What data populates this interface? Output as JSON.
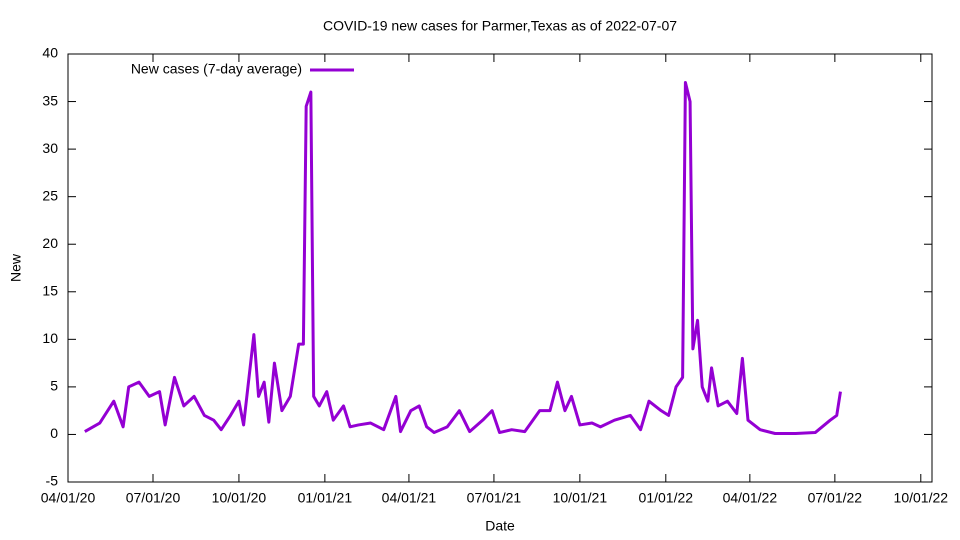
{
  "chart_data": {
    "type": "line",
    "title": "COVID-19 new cases for Parmer,Texas as of 2022-07-07",
    "x_label": "Date",
    "y_label": "New",
    "x": [
      "2020-04-19",
      "2020-05-05",
      "2020-05-20",
      "2020-05-30",
      "2020-06-05",
      "2020-06-16",
      "2020-06-27",
      "2020-07-08",
      "2020-07-14",
      "2020-07-24",
      "2020-08-03",
      "2020-08-14",
      "2020-08-25",
      "2020-09-04",
      "2020-09-12",
      "2020-09-22",
      "2020-10-01",
      "2020-10-06",
      "2020-10-17",
      "2020-10-22",
      "2020-10-28",
      "2020-11-02",
      "2020-11-08",
      "2020-11-16",
      "2020-11-25",
      "2020-12-04",
      "2020-12-09",
      "2020-12-12",
      "2020-12-17",
      "2020-12-20",
      "2020-12-26",
      "2021-01-03",
      "2021-01-10",
      "2021-01-21",
      "2021-01-28",
      "2021-02-06",
      "2021-02-19",
      "2021-03-05",
      "2021-03-18",
      "2021-03-23",
      "2021-04-03",
      "2021-04-12",
      "2021-04-20",
      "2021-04-28",
      "2021-05-12",
      "2021-05-25",
      "2021-06-05",
      "2021-06-19",
      "2021-06-29",
      "2021-07-07",
      "2021-07-20",
      "2021-08-03",
      "2021-08-19",
      "2021-08-30",
      "2021-09-07",
      "2021-09-15",
      "2021-09-22",
      "2021-10-01",
      "2021-10-14",
      "2021-10-23",
      "2021-11-07",
      "2021-11-24",
      "2021-12-05",
      "2021-12-14",
      "2021-12-27",
      "2022-01-04",
      "2022-01-12",
      "2022-01-19",
      "2022-01-22",
      "2022-01-27",
      "2022-01-30",
      "2022-02-04",
      "2022-02-09",
      "2022-02-15",
      "2022-02-19",
      "2022-02-26",
      "2022-03-08",
      "2022-03-18",
      "2022-03-24",
      "2022-03-30",
      "2022-04-12",
      "2022-04-28",
      "2022-05-20",
      "2022-06-10",
      "2022-06-26",
      "2022-07-03",
      "2022-07-07"
    ],
    "series": [
      {
        "name": "New cases (7-day average)",
        "color": "#9400d3",
        "values": [
          0.3,
          1.2,
          3.5,
          0.8,
          5,
          5.5,
          4,
          4.5,
          1,
          6,
          3,
          4,
          2,
          1.5,
          0.5,
          2,
          3.5,
          1,
          10.5,
          4,
          5.5,
          1.3,
          7.5,
          2.5,
          4,
          9.5,
          9.5,
          34.5,
          36,
          4,
          3,
          4.5,
          1.5,
          3,
          0.8,
          1,
          1.2,
          0.5,
          4,
          0.3,
          2.5,
          3,
          0.8,
          0.2,
          0.8,
          2.5,
          0.3,
          1.5,
          2.5,
          0.2,
          0.5,
          0.3,
          2.5,
          2.5,
          5.5,
          2.5,
          4,
          1,
          1.2,
          0.8,
          1.5,
          2,
          0.5,
          3.5,
          2.5,
          2,
          5,
          6,
          37,
          35,
          9,
          12,
          5,
          3.5,
          7,
          3,
          3.5,
          2.2,
          8,
          1.5,
          0.5,
          0.1,
          0.1,
          0.2,
          1.5,
          2,
          4.5
        ]
      }
    ],
    "xlim": [
      "2020-04-01",
      "2022-10-13"
    ],
    "xticks": [
      {
        "value": "2020-04-01",
        "label": "04/01/20"
      },
      {
        "value": "2020-07-01",
        "label": "07/01/20"
      },
      {
        "value": "2020-10-01",
        "label": "10/01/20"
      },
      {
        "value": "2021-01-01",
        "label": "01/01/21"
      },
      {
        "value": "2021-04-01",
        "label": "04/01/21"
      },
      {
        "value": "2021-07-01",
        "label": "07/01/21"
      },
      {
        "value": "2021-10-01",
        "label": "10/01/21"
      },
      {
        "value": "2022-01-01",
        "label": "01/01/22"
      },
      {
        "value": "2022-04-01",
        "label": "04/01/22"
      },
      {
        "value": "2022-07-01",
        "label": "07/01/22"
      },
      {
        "value": "2022-10-01",
        "label": "10/01/22"
      }
    ],
    "ylim": [
      -5,
      40
    ],
    "yticks": [
      -5,
      0,
      5,
      10,
      15,
      20,
      25,
      30,
      35,
      40
    ],
    "grid": false,
    "legend": "top-left"
  }
}
